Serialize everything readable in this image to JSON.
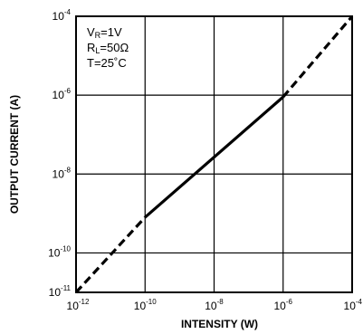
{
  "chart_data": {
    "type": "line",
    "xlabel": "INTENSITY (W)",
    "ylabel": "OUTPUT CURRENT (A)",
    "x_scale": "log",
    "y_scale": "log",
    "xlim": [
      1e-12,
      0.0001
    ],
    "ylim": [
      1e-11,
      0.0001
    ],
    "grid": true,
    "x_ticks": [
      {
        "base": "10",
        "exp": "-12",
        "value": 1e-12
      },
      {
        "base": "10",
        "exp": "-10",
        "value": 1e-10
      },
      {
        "base": "10",
        "exp": "-8",
        "value": 1e-08
      },
      {
        "base": "10",
        "exp": "-6",
        "value": 1e-06
      },
      {
        "base": "10",
        "exp": "-4",
        "value": 0.0001
      }
    ],
    "y_ticks": [
      {
        "base": "10",
        "exp": "-4",
        "value": 0.0001
      },
      {
        "base": "10",
        "exp": "-6",
        "value": 1e-06
      },
      {
        "base": "10",
        "exp": "-8",
        "value": 1e-08
      },
      {
        "base": "10",
        "exp": "-10",
        "value": 1e-10
      },
      {
        "base": "10",
        "exp": "-11",
        "value": 1e-11
      }
    ],
    "series": [
      {
        "segments": [
          {
            "style": "dashed",
            "x": [
              1e-12,
              1e-10
            ],
            "y": [
              1e-11,
              8e-10
            ]
          },
          {
            "style": "solid",
            "x": [
              1e-10,
              1e-06
            ],
            "y": [
              8e-10,
              9e-07
            ]
          },
          {
            "style": "dashed",
            "x": [
              1e-06,
              0.0001
            ],
            "y": [
              9e-07,
              0.0001
            ]
          }
        ]
      }
    ],
    "annotations": [
      {
        "main": "V",
        "sub": "R",
        "rest": "=1V"
      },
      {
        "main": "R",
        "sub": "L",
        "rest": "=50Ω"
      },
      {
        "main": "T=25˚C",
        "sub": "",
        "rest": ""
      }
    ]
  }
}
